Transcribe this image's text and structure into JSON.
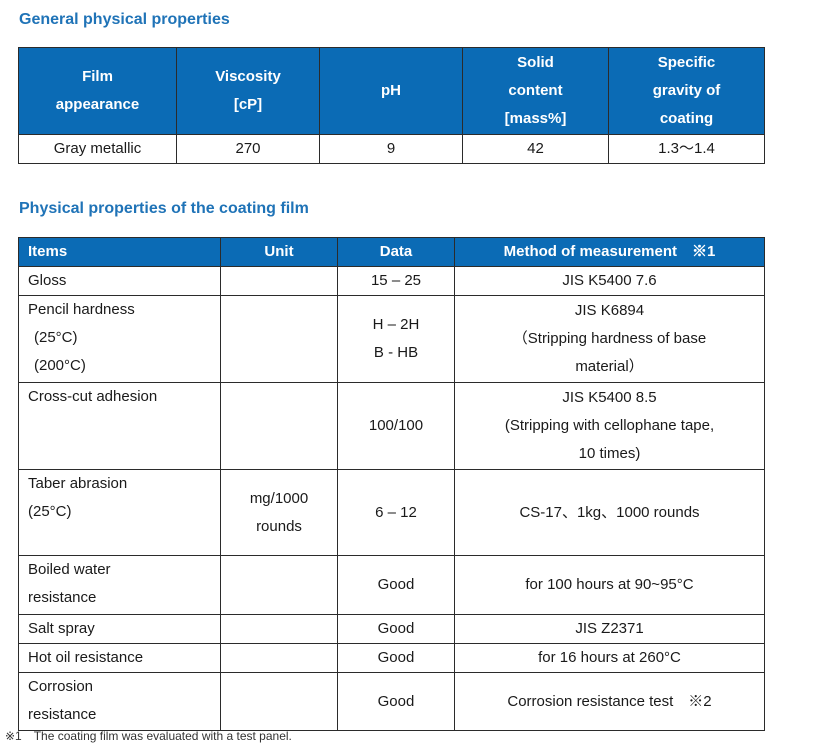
{
  "general": {
    "heading": "General physical properties",
    "headers": [
      [
        "Film",
        "appearance"
      ],
      [
        "Viscosity",
        "[cP]"
      ],
      [
        "pH"
      ],
      [
        "Solid",
        "content",
        "[mass%]"
      ],
      [
        "Specific",
        "gravity of",
        "coating"
      ]
    ],
    "values": [
      "Gray metallic",
      "270",
      "9",
      "42",
      "1.3〜1.4"
    ]
  },
  "coating": {
    "heading": "Physical properties of the coating film",
    "headers": [
      "Items",
      "Unit",
      "Data",
      "Method of measurement　※1"
    ],
    "rows": [
      {
        "item": [
          "Gloss"
        ],
        "unit": [],
        "data": [
          "15 – 25"
        ],
        "method": [
          "JIS K5400 7.6"
        ]
      },
      {
        "item": [
          "Pencil hardness",
          " (25°C)",
          " (200°C)"
        ],
        "unit": [],
        "data": [
          "",
          "H – 2H",
          "B - HB"
        ],
        "method": [
          "JIS K6894",
          "（Stripping hardness of base",
          "material）"
        ]
      },
      {
        "item": [
          "Cross-cut adhesion",
          "",
          ""
        ],
        "unit": [],
        "data": [
          "100/100"
        ],
        "method": [
          "JIS K5400 8.5",
          "(Stripping with cellophane tape,",
          "10 times)"
        ]
      },
      {
        "item": [
          "Taber abrasion",
          "(25°C)"
        ],
        "unit": [
          "mg/1000",
          "rounds"
        ],
        "data": [
          "6 – 12"
        ],
        "method": [
          "CS-17、1kg、1000 rounds"
        ]
      },
      {
        "item": [
          "Boiled water",
          "resistance"
        ],
        "unit": [],
        "data": [
          "Good"
        ],
        "method": [
          "for 100 hours at 90~95°C"
        ]
      },
      {
        "item": [
          "Salt spray"
        ],
        "unit": [],
        "data": [
          "Good"
        ],
        "method": [
          "JIS Z2371"
        ]
      },
      {
        "item": [
          "Hot oil resistance"
        ],
        "unit": [],
        "data": [
          "Good"
        ],
        "method": [
          "for 16 hours at 260°C"
        ]
      },
      {
        "item": [
          "Corrosion",
          "resistance"
        ],
        "unit": [],
        "data": [
          "Good"
        ],
        "method": [
          "Corrosion resistance test　※2"
        ]
      }
    ]
  },
  "footnote": "※1　The coating film was evaluated with a test panel."
}
